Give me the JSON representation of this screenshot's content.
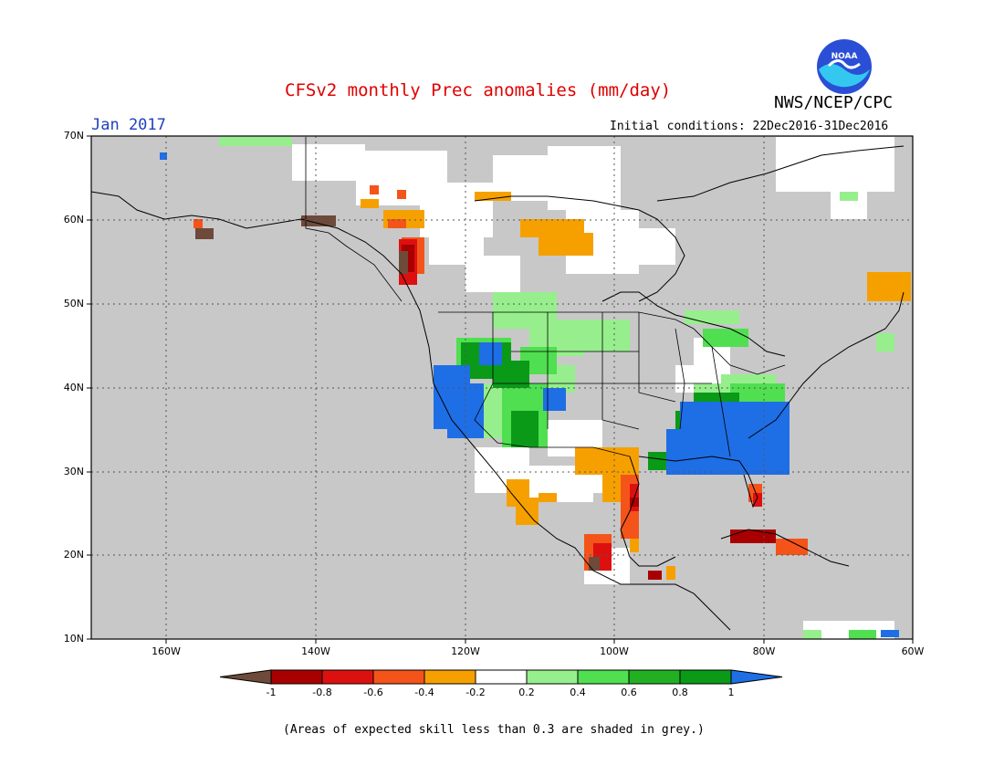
{
  "header": {
    "title": "CFSv2 monthly Prec anomalies (mm/day)",
    "agency": "NWS/NCEP/CPC",
    "logo_text": "NOAA",
    "month": "Jan 2017",
    "initial_conditions": "Initial conditions: 22Dec2016-31Dec2016"
  },
  "map": {
    "lat_labels": [
      "70N",
      "60N",
      "50N",
      "40N",
      "30N",
      "20N",
      "10N"
    ],
    "lon_labels": [
      "160W",
      "140W",
      "120W",
      "100W",
      "80W",
      "60W"
    ],
    "background_color": "#c8c8c8"
  },
  "colorbar": {
    "ticks": [
      "-1",
      "-0.8",
      "-0.6",
      "-0.4",
      "-0.2",
      "0.2",
      "0.4",
      "0.6",
      "0.8",
      "1"
    ],
    "colors": [
      "#6e4a3a",
      "#a80000",
      "#dd1010",
      "#f4541a",
      "#f6a000",
      "#ffffff",
      "#96ef8c",
      "#50df50",
      "#22b022",
      "#0a9a18",
      "#1e6ee6"
    ]
  },
  "footnote": "(Areas of expected skill less than 0.3 are shaded in grey.)"
}
